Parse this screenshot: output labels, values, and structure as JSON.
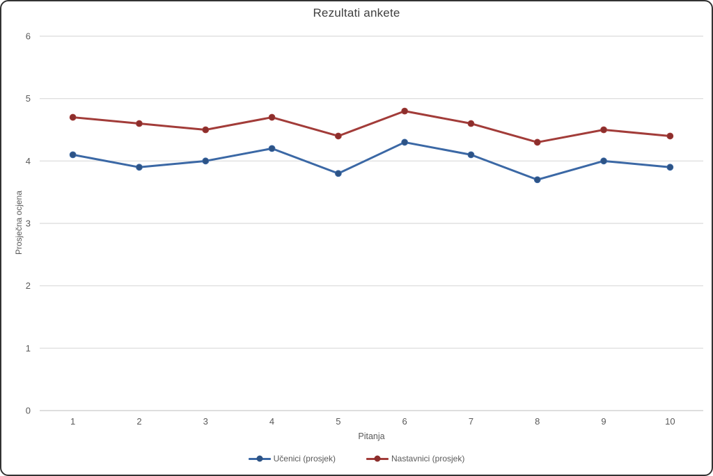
{
  "page": {
    "background": "#ffffff",
    "frame_border_color": "#0f0f0f"
  },
  "chart_data": {
    "type": "line",
    "title": "Rezultati ankete",
    "xlabel": "Pitanja",
    "ylabel": "Prosječna ocjena",
    "categories": [
      "1",
      "2",
      "3",
      "4",
      "5",
      "6",
      "7",
      "8",
      "9",
      "10"
    ],
    "series": [
      {
        "name": "Učenici (prosjek)",
        "values": [
          4.1,
          3.9,
          4.0,
          4.2,
          3.8,
          4.3,
          4.1,
          3.7,
          4.0,
          3.9
        ],
        "color": "#3b68a5",
        "marker_color": "#2d5385"
      },
      {
        "name": "Nastavnici (prosjek)",
        "values": [
          4.7,
          4.6,
          4.5,
          4.7,
          4.4,
          4.8,
          4.6,
          4.3,
          4.5,
          4.4
        ],
        "color": "#a23c39",
        "marker_color": "#8c2e2c"
      }
    ],
    "ylim": [
      0,
      6
    ],
    "yticks": [
      0,
      1,
      2,
      3,
      4,
      5,
      6
    ],
    "grid": "horizontal",
    "gridline_color": "#d9d9d9",
    "zero_line_color": "#c9c9c9",
    "axis_text_color": "#595959",
    "legend_position": "bottom"
  }
}
